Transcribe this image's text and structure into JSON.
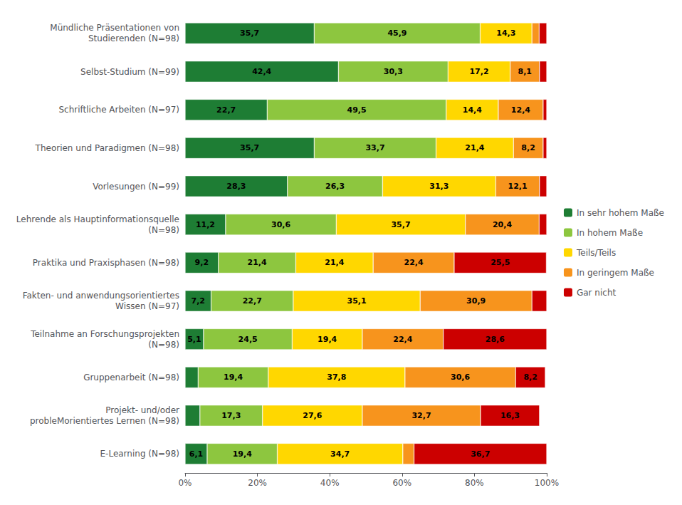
{
  "chart_data": {
    "type": "bar",
    "orientation": "horizontal",
    "stacked": true,
    "data_labels": true,
    "grid": false,
    "legend": "right",
    "categories": [
      "Mündliche Präsentationen von\nStudierenden (N=98)",
      "Selbst-Studium (N=99)",
      "Schriftliche Arbeiten (N=97)",
      "Theorien und Paradigmen (N=98)",
      "Vorlesungen (N=99)",
      "Lehrende als Hauptinformationsquelle\n(N=98)",
      "Praktika und Praxisphasen (N=98)",
      "Fakten- und anwendungsorientiertes\nWissen (N=97)",
      "Teilnahme an Forschungsprojekten\n(N=98)",
      "Gruppenarbeit (N=98)",
      "Projekt- und/oder\nprobleMorientiertes Lernen (N=98)",
      "E-Learning (N=98)"
    ],
    "series": [
      {
        "name": "In sehr hohem Maße",
        "color": "#1e7d34",
        "values": [
          35.7,
          42.4,
          22.7,
          35.7,
          28.3,
          11.2,
          9.2,
          7.2,
          5.1,
          3.6,
          4.1,
          6.1
        ],
        "value_labels": [
          "35,7",
          "42,4",
          "22,7",
          "35,7",
          "28,3",
          "11,2",
          "9,2",
          "7,2",
          "5,1",
          null,
          null,
          "6,1"
        ]
      },
      {
        "name": "In hohem Maße",
        "color": "#8dc63f",
        "values": [
          45.9,
          30.3,
          49.5,
          33.7,
          26.3,
          30.6,
          21.4,
          22.7,
          24.5,
          19.4,
          17.3,
          19.4
        ],
        "value_labels": [
          "45,9",
          "30,3",
          "49,5",
          "33,7",
          "26,3",
          "30,6",
          "21,4",
          "22,7",
          "24,5",
          "19,4",
          "17,3",
          "19,4"
        ]
      },
      {
        "name": "Teils/Teils",
        "color": "#ffd700",
        "values": [
          14.3,
          17.2,
          14.4,
          21.4,
          31.3,
          35.7,
          21.4,
          35.1,
          19.4,
          37.8,
          27.6,
          34.7
        ],
        "value_labels": [
          "14,3",
          "17,2",
          "14,4",
          "21,4",
          "31,3",
          "35,7",
          "21,4",
          "35,1",
          "19,4",
          "37,8",
          "27,6",
          "34,7"
        ]
      },
      {
        "name": "In geringem Maße",
        "color": "#f7941d",
        "values": [
          2.0,
          8.1,
          12.4,
          8.2,
          12.1,
          20.4,
          22.4,
          30.9,
          22.4,
          30.6,
          32.7,
          3.1
        ],
        "value_labels": [
          null,
          "8,1",
          "12,4",
          "8,2",
          "12,1",
          "20,4",
          "22,4",
          "30,9",
          "22,4",
          "30,6",
          "32,7",
          null
        ]
      },
      {
        "name": "Gar nicht",
        "color": "#cc0000",
        "values": [
          2.1,
          2.0,
          1.0,
          1.0,
          2.0,
          2.1,
          25.5,
          4.1,
          28.6,
          8.2,
          16.3,
          36.7
        ],
        "value_labels": [
          null,
          null,
          null,
          null,
          null,
          null,
          "25,5",
          null,
          "28,6",
          "8,2",
          "16,3",
          "36,7"
        ]
      }
    ],
    "xlim": [
      0,
      100
    ],
    "xticks": [
      {
        "value": 0,
        "label": "0%"
      },
      {
        "value": 20,
        "label": "20%"
      },
      {
        "value": 40,
        "label": "40%"
      },
      {
        "value": 60,
        "label": "60%"
      },
      {
        "value": 80,
        "label": "80%"
      },
      {
        "value": 100,
        "label": "100%"
      }
    ]
  }
}
